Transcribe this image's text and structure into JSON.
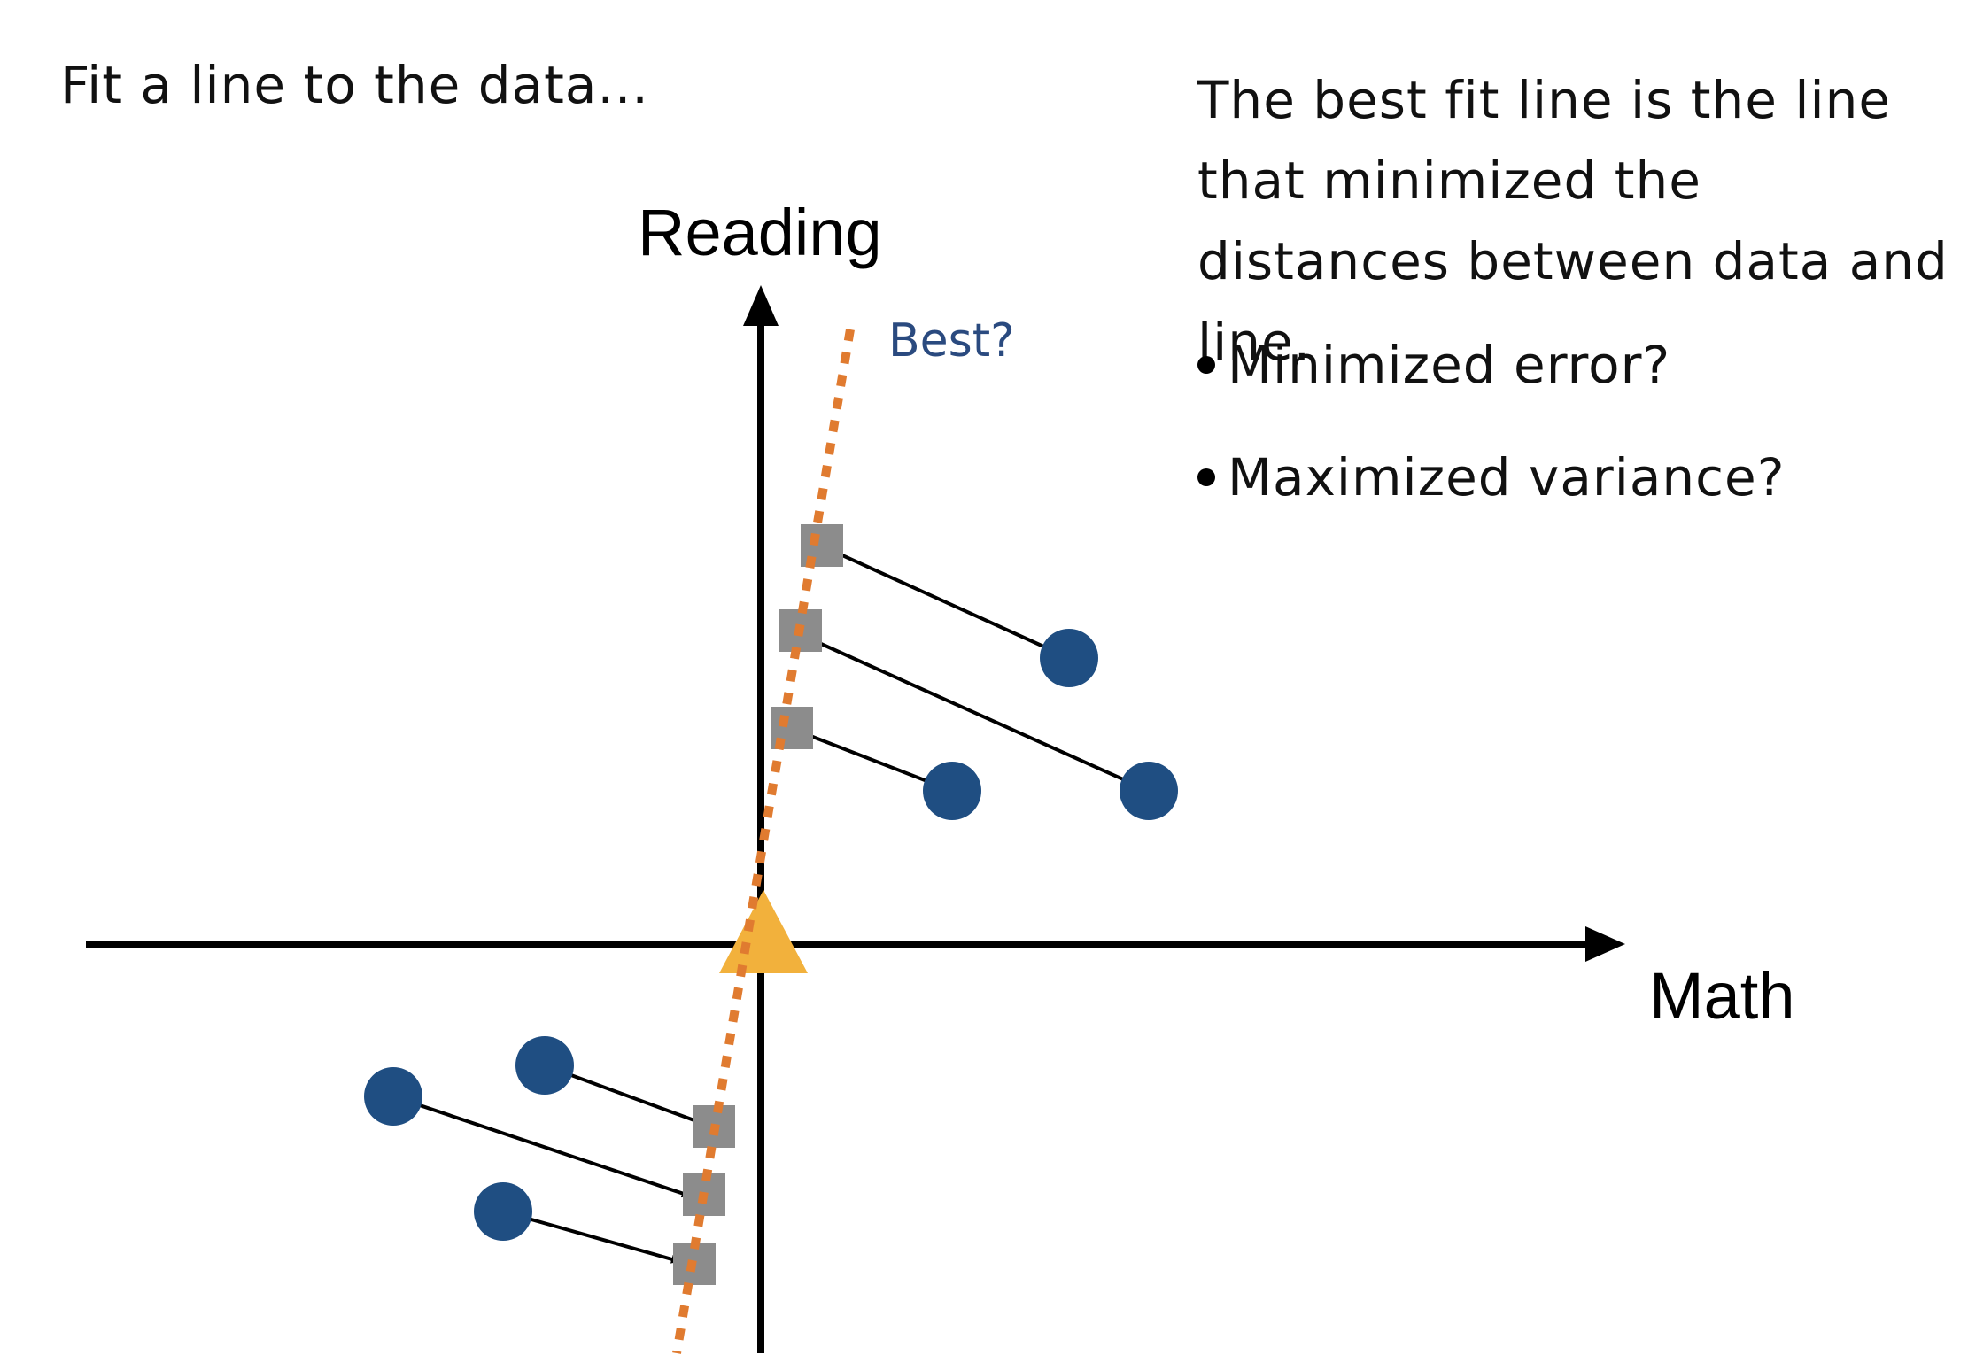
{
  "intro_text": "Fit a line to the data...",
  "explanation": "The best fit line is the line that minimized the distances between data and line.",
  "bullets": [
    "Minimized error?",
    "Maximized variance?"
  ],
  "axes": {
    "y_label": "Reading",
    "x_label": "Math"
  },
  "line_label": "Best?",
  "colors": {
    "point": "#1f4e82",
    "projection": "#8c8c8c",
    "best_line": "#e07b30",
    "origin_marker": "#f2b13c",
    "axis": "#000000",
    "line_label": "#2a4a7f"
  },
  "icons": {
    "origin_marker": "triangle-icon",
    "bullet": "bullet-dot-icon"
  }
}
